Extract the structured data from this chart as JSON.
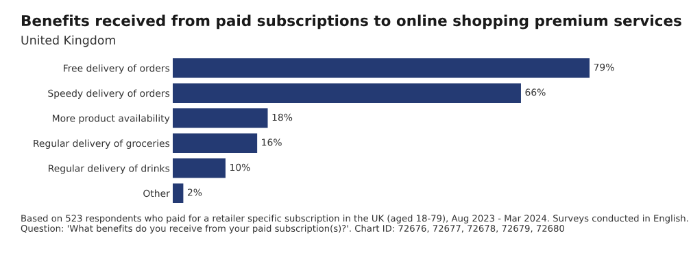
{
  "chart_data": {
    "type": "bar",
    "orientation": "horizontal",
    "title": "Benefits received from paid subscriptions to online shopping premium services",
    "subtitle": "United Kingdom",
    "categories": [
      "Free delivery of orders",
      "Speedy delivery of orders",
      "More product availability",
      "Regular delivery of groceries",
      "Regular delivery of drinks",
      "Other"
    ],
    "values": [
      79,
      66,
      18,
      16,
      10,
      2
    ],
    "value_labels": [
      "79%",
      "66%",
      "18%",
      "16%",
      "10%",
      "2%"
    ],
    "color": "#243a73",
    "annotations": [
      "Based on 523 respondents who paid for a retailer specific subscription in the UK (aged 18-79), Aug 2023 - Mar 2024. Surveys conducted in English. Question: 'What benefits do you receive from your paid subscription(s)?'. Chart ID: 72676, 72677, 72678, 72679, 72680"
    ]
  }
}
